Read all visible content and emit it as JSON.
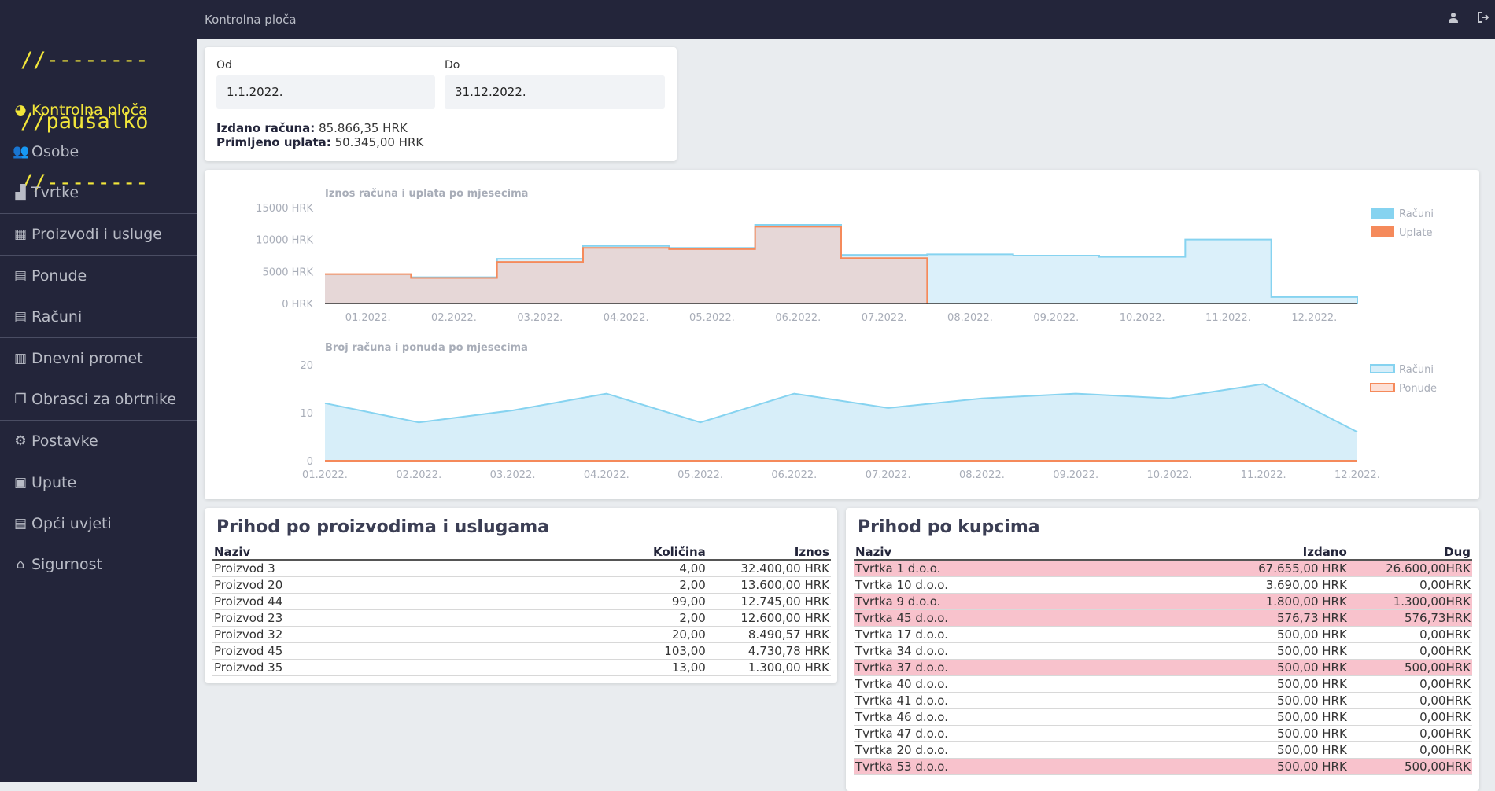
{
  "app": {
    "logo_lines": [
      "//--------",
      "//paušalko",
      "//--------"
    ],
    "page_title": "Kontrolna ploča"
  },
  "sidebar": {
    "items": [
      {
        "label": "Kontrolna ploča",
        "icon": "dashboard-icon",
        "active": true
      },
      {
        "label": "Osobe",
        "icon": "users-icon"
      },
      {
        "label": "Tvrtke",
        "icon": "factory-icon"
      },
      {
        "label": "Proizvodi i usluge",
        "icon": "boxes-icon"
      },
      {
        "label": "Ponude",
        "icon": "document-icon"
      },
      {
        "label": "Računi",
        "icon": "invoice-icon"
      },
      {
        "label": "Dnevni promet",
        "icon": "ledger-icon"
      },
      {
        "label": "Obrasci za obrtnike",
        "icon": "copy-icon"
      },
      {
        "label": "Postavke",
        "icon": "gear-icon"
      },
      {
        "label": "Upute",
        "icon": "first-aid-icon"
      },
      {
        "label": "Opći uvjeti",
        "icon": "file-contract-icon"
      },
      {
        "label": "Sigurnost",
        "icon": "bank-icon"
      }
    ]
  },
  "topbar": {
    "user_icon": "user-icon",
    "logout_icon": "logout-icon"
  },
  "filter": {
    "from_label": "Od",
    "from_value": "1.1.2022.",
    "to_label": "Do",
    "to_value": "31.12.2022.",
    "issued_label": "Izdano računa:",
    "issued_value": "85.866,35 HRK",
    "received_label": "Primljeno uplata:",
    "received_value": "50.345,00 HRK"
  },
  "chart_data": [
    {
      "type": "area",
      "step": true,
      "title": "Iznos računa i uplata po mjesecima",
      "categories": [
        "01.2022.",
        "02.2022.",
        "03.2022.",
        "04.2022.",
        "05.2022.",
        "06.2022.",
        "07.2022.",
        "08.2022.",
        "09.2022.",
        "10.2022.",
        "11.2022.",
        "12.2022."
      ],
      "yticks": [
        "0 HRK",
        "5000 HRK",
        "10000 HRK",
        "15000 HRK"
      ],
      "ylim": [
        0,
        15000
      ],
      "legend_position": "top-right",
      "series": [
        {
          "name": "Računi",
          "color": "#86d3f0",
          "fill": "#d7eef9",
          "values": [
            4500,
            4100,
            7000,
            9000,
            8700,
            12300,
            7600,
            7700,
            7500,
            7300,
            10000,
            1000
          ]
        },
        {
          "name": "Uplate",
          "color": "#f58a5b",
          "fill": "#e7d4d3",
          "values": [
            4600,
            4000,
            6500,
            8700,
            8500,
            12000,
            7100,
            null,
            null,
            null,
            null,
            null
          ]
        }
      ]
    },
    {
      "type": "area",
      "title": "Broj računa i ponuda po mjesecima",
      "categories": [
        "01.2022.",
        "02.2022.",
        "03.2022.",
        "04.2022.",
        "05.2022.",
        "06.2022.",
        "07.2022.",
        "08.2022.",
        "09.2022.",
        "10.2022.",
        "11.2022.",
        "12.2022."
      ],
      "yticks": [
        "0",
        "10",
        "20"
      ],
      "ylim": [
        0,
        20
      ],
      "legend_position": "top-right",
      "series": [
        {
          "name": "Računi",
          "color": "#86d3f0",
          "fill": "#d7eef9",
          "values": [
            12,
            8,
            10.5,
            14,
            8,
            14,
            11,
            13,
            14,
            13,
            16,
            6
          ]
        },
        {
          "name": "Ponude",
          "color": "#f58a5b",
          "fill": "#fde0d6",
          "values": [
            0,
            0,
            0,
            0,
            0,
            0,
            0,
            0,
            0,
            0,
            0,
            0
          ]
        }
      ]
    }
  ],
  "products": {
    "title": "Prihod po proizvodima i uslugama",
    "columns": [
      "Naziv",
      "Količina",
      "Iznos"
    ],
    "rows": [
      [
        "Proizvod 3",
        "4,00",
        "32.400,00 HRK"
      ],
      [
        "Proizvod 20",
        "2,00",
        "13.600,00 HRK"
      ],
      [
        "Proizvod 44",
        "99,00",
        "12.745,00 HRK"
      ],
      [
        "Proizvod 23",
        "2,00",
        "12.600,00 HRK"
      ],
      [
        "Proizvod 32",
        "20,00",
        "8.490,57 HRK"
      ],
      [
        "Proizvod 45",
        "103,00",
        "4.730,78 HRK"
      ],
      [
        "Proizvod 35",
        "13,00",
        "1.300,00 HRK"
      ]
    ]
  },
  "customers": {
    "title": "Prihod po kupcima",
    "columns": [
      "Naziv",
      "Izdano",
      "Dug"
    ],
    "rows": [
      {
        "cells": [
          "Tvrtka 1 d.o.o.",
          "67.655,00 HRK",
          "26.600,00HRK"
        ],
        "debt": true
      },
      {
        "cells": [
          "Tvrtka 10 d.o.o.",
          "3.690,00 HRK",
          "0,00HRK"
        ],
        "debt": false
      },
      {
        "cells": [
          "Tvrtka 9 d.o.o.",
          "1.800,00 HRK",
          "1.300,00HRK"
        ],
        "debt": true
      },
      {
        "cells": [
          "Tvrtka 45 d.o.o.",
          "576,73 HRK",
          "576,73HRK"
        ],
        "debt": true
      },
      {
        "cells": [
          "Tvrtka 17 d.o.o.",
          "500,00 HRK",
          "0,00HRK"
        ],
        "debt": false
      },
      {
        "cells": [
          "Tvrtka 34 d.o.o.",
          "500,00 HRK",
          "0,00HRK"
        ],
        "debt": false
      },
      {
        "cells": [
          "Tvrtka 37 d.o.o.",
          "500,00 HRK",
          "500,00HRK"
        ],
        "debt": true
      },
      {
        "cells": [
          "Tvrtka 40 d.o.o.",
          "500,00 HRK",
          "0,00HRK"
        ],
        "debt": false
      },
      {
        "cells": [
          "Tvrtka 41 d.o.o.",
          "500,00 HRK",
          "0,00HRK"
        ],
        "debt": false
      },
      {
        "cells": [
          "Tvrtka 46 d.o.o.",
          "500,00 HRK",
          "0,00HRK"
        ],
        "debt": false
      },
      {
        "cells": [
          "Tvrtka 47 d.o.o.",
          "500,00 HRK",
          "0,00HRK"
        ],
        "debt": false
      },
      {
        "cells": [
          "Tvrtka 20 d.o.o.",
          "500,00 HRK",
          "0,00HRK"
        ],
        "debt": false
      },
      {
        "cells": [
          "Tvrtka 53 d.o.o.",
          "500,00 HRK",
          "500,00HRK"
        ],
        "debt": true
      }
    ]
  }
}
